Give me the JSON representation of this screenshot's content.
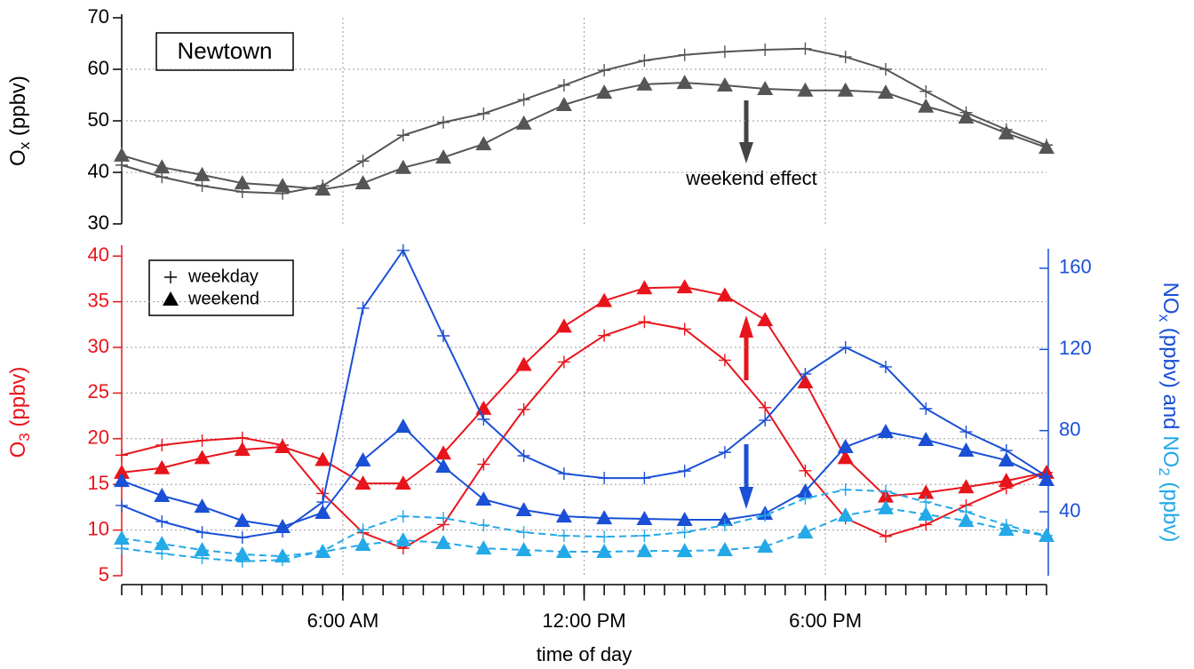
{
  "chart_data": [
    {
      "type": "line",
      "ylabel": [
        {
          "text": "O"
        },
        {
          "text": "x",
          "sub": true
        },
        {
          "text": " (ppbv)"
        }
      ],
      "annotations": [
        "Newtown",
        "weekend effect"
      ],
      "x": [
        0.5,
        1.5,
        2.5,
        3.5,
        4.5,
        5.5,
        6.5,
        7.5,
        8.5,
        9.5,
        10.5,
        11.5,
        12.5,
        13.5,
        14.5,
        15.5,
        16.5,
        17.5,
        18.5,
        19.5,
        20.5,
        21.5,
        22.5,
        23.5
      ],
      "xlim": [
        0.5,
        23.5
      ],
      "xgrid": [
        6,
        12,
        18
      ],
      "ylim": [
        30,
        70
      ],
      "yticks": [
        30,
        40,
        50,
        60,
        70
      ],
      "ylabel_color": "#000000",
      "grid": true,
      "series": [
        {
          "marker": "plus",
          "color": "#555555",
          "values": [
            41.4,
            39.1,
            37.4,
            36.2,
            35.9,
            37.4,
            42.2,
            47.2,
            49.7,
            51.4,
            54.1,
            56.9,
            59.8,
            61.7,
            62.8,
            63.4,
            63.8,
            64.0,
            62.4,
            60.0,
            55.7,
            51.6,
            48.3,
            45.3
          ]
        },
        {
          "marker": "triangle",
          "color": "#555555",
          "values": [
            43.3,
            41.0,
            39.5,
            37.9,
            37.4,
            36.7,
            37.9,
            40.9,
            42.9,
            45.5,
            49.5,
            53.1,
            55.5,
            57.1,
            57.4,
            56.9,
            56.2,
            55.9,
            55.9,
            55.5,
            52.8,
            50.7,
            47.6,
            44.8
          ]
        }
      ]
    },
    {
      "type": "line",
      "ylabel": [
        {
          "text": "O"
        },
        {
          "text": "3",
          "sub": true
        },
        {
          "text": " (ppbv)"
        }
      ],
      "ylabel_color": "#e8141b",
      "y2label": [
        {
          "text": "NO",
          "color": "#1a4fd6"
        },
        {
          "text": "x",
          "sub": true,
          "color": "#1a4fd6"
        },
        {
          "text": " (ppbv) and ",
          "color": "#1a4fd6"
        },
        {
          "text": "NO",
          "color": "#23a8e8"
        },
        {
          "text": "2",
          "sub": true,
          "color": "#23a8e8"
        },
        {
          "text": " (ppbv)",
          "color": "#23a8e8"
        }
      ],
      "y2label_color": "#1a4fd6",
      "xlabel": "time of day",
      "x": [
        0.5,
        1.5,
        2.5,
        3.5,
        4.5,
        5.5,
        6.5,
        7.5,
        8.5,
        9.5,
        10.5,
        11.5,
        12.5,
        13.5,
        14.5,
        15.5,
        16.5,
        17.5,
        18.5,
        19.5,
        20.5,
        21.5,
        22.5,
        23.5
      ],
      "xlim": [
        0.5,
        23.5
      ],
      "xminor_step": 0.5,
      "xticks": [
        {
          "value": 6,
          "label": "6:00 AM"
        },
        {
          "value": 12,
          "label": "12:00 PM"
        },
        {
          "value": 18,
          "label": "6:00 PM"
        }
      ],
      "ylim": [
        5,
        40.8
      ],
      "yticks": [
        5,
        10,
        15,
        20,
        25,
        30,
        35,
        40
      ],
      "y2lim": [
        8.5,
        169.6
      ],
      "y2ticks": [
        40,
        80,
        120,
        160
      ],
      "grid": true,
      "legend": {
        "entries": [
          {
            "label": "weekday",
            "marker": "plus"
          },
          {
            "label": "weekend",
            "marker": "triangle"
          }
        ]
      },
      "series": [
        {
          "marker": "plus",
          "color": "#e8141b",
          "values": [
            18.2,
            19.3,
            19.8,
            20.1,
            19.3,
            14.0,
            9.7,
            8.0,
            10.6,
            17.2,
            23.2,
            28.4,
            31.3,
            32.8,
            32.0,
            28.6,
            23.4,
            16.5,
            11.3,
            9.3,
            10.6,
            12.7,
            14.6,
            16.3
          ]
        },
        {
          "marker": "triangle",
          "color": "#e8141b",
          "values": [
            16.3,
            16.8,
            17.9,
            18.8,
            19.1,
            17.7,
            15.1,
            15.1,
            18.4,
            23.3,
            28.1,
            32.3,
            35.1,
            36.5,
            36.6,
            35.7,
            33.0,
            26.2,
            17.9,
            13.7,
            14.1,
            14.7,
            15.4,
            16.3
          ]
        },
        {
          "marker": "plus",
          "color": "#1a4fd6",
          "axis": "y2",
          "values": [
            43.1,
            35.2,
            29.9,
            27.3,
            30.4,
            44.8,
            140.3,
            168.8,
            126.7,
            85.6,
            67.6,
            58.8,
            56.6,
            56.6,
            60.1,
            69.3,
            85.1,
            107.9,
            121.0,
            111.4,
            90.8,
            79.4,
            70.2,
            57.5
          ]
        },
        {
          "marker": "triangle",
          "color": "#1a4fd6",
          "axis": "y2",
          "values": [
            55.3,
            47.9,
            42.6,
            35.6,
            32.6,
            39.6,
            65.4,
            82.0,
            62.3,
            46.1,
            40.9,
            37.8,
            36.9,
            36.5,
            36.1,
            36.1,
            39.1,
            50.1,
            72.0,
            79.4,
            75.5,
            70.2,
            65.4,
            55.8
          ]
        },
        {
          "marker": "plus",
          "color": "#23a8e8",
          "axis": "y2",
          "dashed": true,
          "values": [
            22.0,
            19.4,
            17.2,
            15.5,
            16.3,
            20.7,
            31.2,
            37.8,
            36.9,
            33.4,
            29.9,
            28.2,
            27.7,
            28.2,
            29.9,
            33.4,
            38.2,
            46.6,
            50.9,
            50.1,
            44.8,
            40.0,
            33.4,
            28.2
          ]
        },
        {
          "marker": "triangle",
          "color": "#23a8e8",
          "axis": "y2",
          "dashed": true,
          "values": [
            26.9,
            24.2,
            21.2,
            19.0,
            18.1,
            20.3,
            23.8,
            26.0,
            24.7,
            22.0,
            21.2,
            20.3,
            20.3,
            20.7,
            20.7,
            21.2,
            22.9,
            29.9,
            38.2,
            41.8,
            38.7,
            35.6,
            31.2,
            28.2
          ]
        }
      ]
    }
  ]
}
